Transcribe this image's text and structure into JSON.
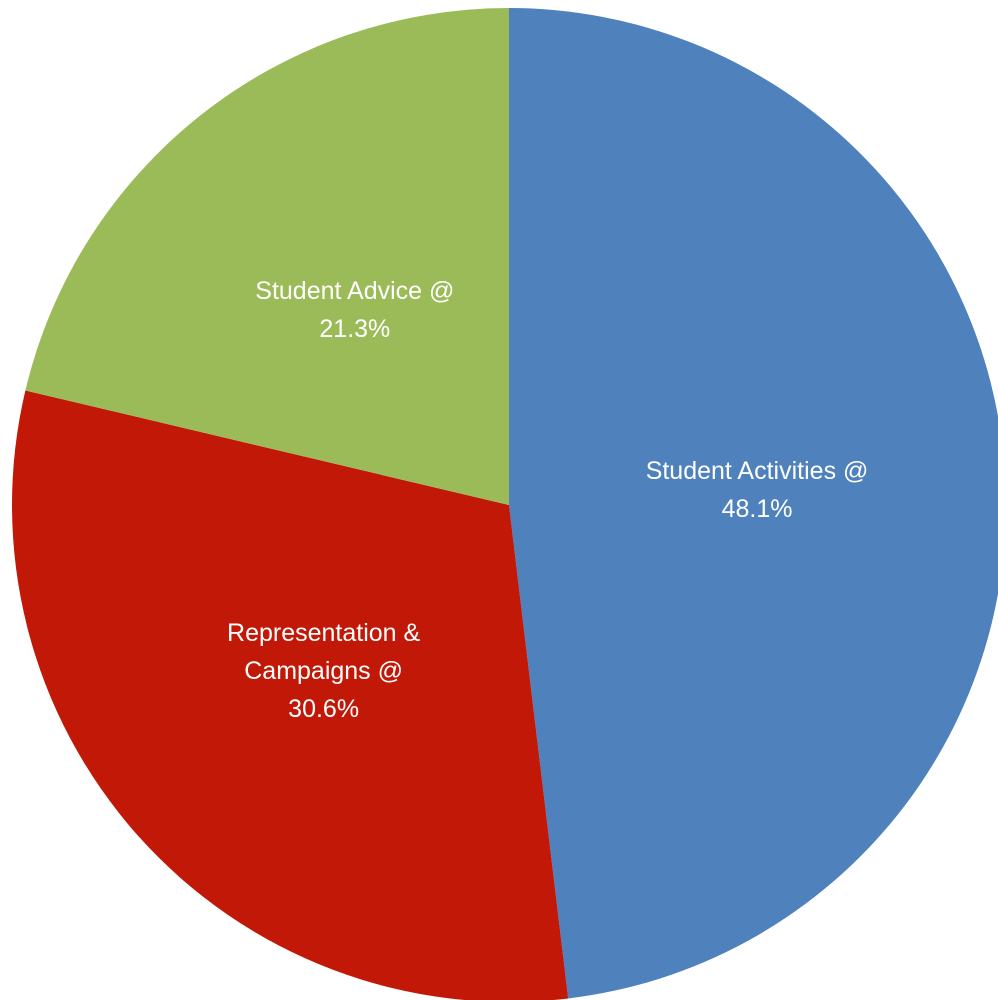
{
  "chart_data": {
    "type": "pie",
    "categories": [
      "Student Activities @",
      "Representation & Campaigns @",
      "Student Advice @"
    ],
    "values": [
      48.1,
      30.6,
      21.3
    ],
    "value_labels": [
      "48.1%",
      "30.6%",
      "21.3%"
    ],
    "colors": [
      "#4f81bd",
      "#c21807",
      "#9bbb59"
    ]
  }
}
